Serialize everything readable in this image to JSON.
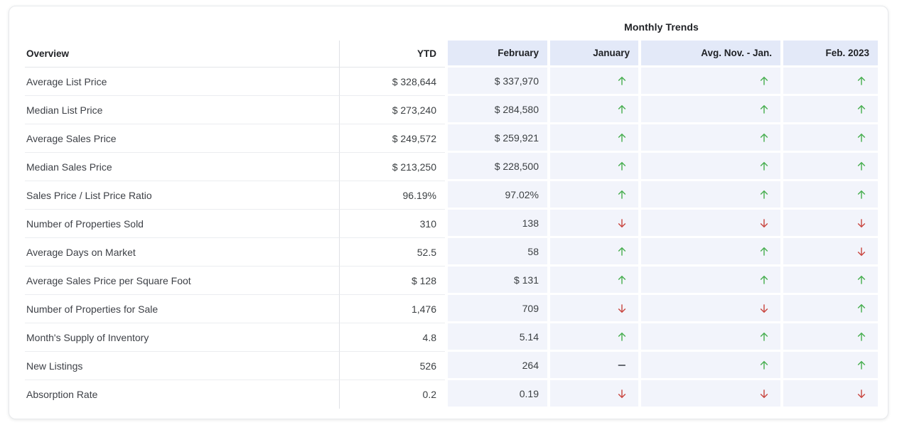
{
  "colors": {
    "trend_up": "#47AE4F",
    "trend_down": "#C9453F",
    "trend_flat": "#474C55",
    "band_header_bg": "#E3E9F8",
    "band_cell_bg": "#F2F4FB"
  },
  "table": {
    "group_header": "Monthly Trends",
    "columns": [
      "Overview",
      "YTD",
      "February",
      "January",
      "Avg. Nov. - Jan.",
      "Feb. 2023"
    ],
    "rows": [
      {
        "label": "Average List Price",
        "ytd": "$ 328,644",
        "february": "$ 337,970",
        "january_trend": "up",
        "avg_nov_jan_trend": "up",
        "feb_2023_trend": "up"
      },
      {
        "label": "Median List Price",
        "ytd": "$ 273,240",
        "february": "$ 284,580",
        "january_trend": "up",
        "avg_nov_jan_trend": "up",
        "feb_2023_trend": "up"
      },
      {
        "label": "Average Sales Price",
        "ytd": "$ 249,572",
        "february": "$ 259,921",
        "january_trend": "up",
        "avg_nov_jan_trend": "up",
        "feb_2023_trend": "up"
      },
      {
        "label": "Median Sales Price",
        "ytd": "$ 213,250",
        "february": "$ 228,500",
        "january_trend": "up",
        "avg_nov_jan_trend": "up",
        "feb_2023_trend": "up"
      },
      {
        "label": "Sales Price / List Price Ratio",
        "ytd": "96.19%",
        "february": "97.02%",
        "january_trend": "up",
        "avg_nov_jan_trend": "up",
        "feb_2023_trend": "up"
      },
      {
        "label": "Number of Properties Sold",
        "ytd": "310",
        "february": "138",
        "january_trend": "down",
        "avg_nov_jan_trend": "down",
        "feb_2023_trend": "down"
      },
      {
        "label": "Average Days on Market",
        "ytd": "52.5",
        "february": "58",
        "january_trend": "up",
        "avg_nov_jan_trend": "up",
        "feb_2023_trend": "down"
      },
      {
        "label": "Average Sales Price per Square Foot",
        "ytd": "$ 128",
        "february": "$ 131",
        "january_trend": "up",
        "avg_nov_jan_trend": "up",
        "feb_2023_trend": "up"
      },
      {
        "label": "Number of Properties for Sale",
        "ytd": "1,476",
        "february": "709",
        "january_trend": "down",
        "avg_nov_jan_trend": "down",
        "feb_2023_trend": "up"
      },
      {
        "label": "Month's Supply of Inventory",
        "ytd": "4.8",
        "february": "5.14",
        "january_trend": "up",
        "avg_nov_jan_trend": "up",
        "feb_2023_trend": "up"
      },
      {
        "label": "New Listings",
        "ytd": "526",
        "february": "264",
        "january_trend": "flat",
        "avg_nov_jan_trend": "up",
        "feb_2023_trend": "up"
      },
      {
        "label": "Absorption Rate",
        "ytd": "0.2",
        "february": "0.19",
        "january_trend": "down",
        "avg_nov_jan_trend": "down",
        "feb_2023_trend": "down"
      }
    ]
  }
}
